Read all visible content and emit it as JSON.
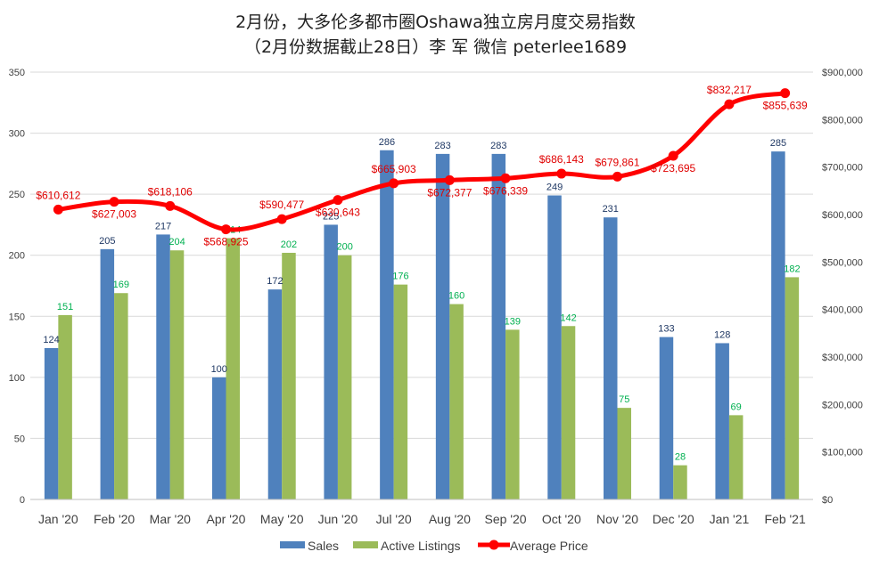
{
  "chart_data": {
    "type": "bar",
    "title": "2月份，大多伦多都市圈Oshawa独立房月度交易指数",
    "subtitle": "（2月份数据截止28日）李 军  微信  peterlee1689",
    "categories": [
      "Jan '20",
      "Feb '20",
      "Mar '20",
      "Apr '20",
      "May '20",
      "Jun '20",
      "Jul '20",
      "Aug '20",
      "Sep '20",
      "Oct '20",
      "Nov '20",
      "Dec '20",
      "Jan '21",
      "Feb '21"
    ],
    "series": [
      {
        "name": "Sales",
        "type": "bar",
        "axis": "left",
        "color": "#4f81bd",
        "label_color": "#1f3864",
        "values": [
          124,
          205,
          217,
          100,
          172,
          225,
          286,
          283,
          283,
          249,
          231,
          133,
          128,
          285
        ]
      },
      {
        "name": "Active Listings",
        "type": "bar",
        "axis": "left",
        "color": "#9bbb59",
        "label_color": "#00b050",
        "values": [
          151,
          169,
          204,
          214,
          202,
          200,
          176,
          160,
          139,
          142,
          75,
          28,
          69,
          182
        ]
      },
      {
        "name": "Average Price",
        "type": "line",
        "axis": "right",
        "color": "#ff0000",
        "label_color": "#e00000",
        "values": [
          610612,
          627003,
          618106,
          568925,
          590477,
          630643,
          665903,
          672377,
          676339,
          686143,
          679861,
          723695,
          832217,
          855639
        ],
        "labels": [
          "$610,612",
          "$627,003",
          "$618,106",
          "$568,925",
          "$590,477",
          "$630,643",
          "$665,903",
          "$672,377",
          "$676,339",
          "$686,143",
          "$679,861",
          "$723,695",
          "$832,217",
          "$855,639"
        ]
      }
    ],
    "left_axis": {
      "ylim": [
        0,
        350
      ],
      "ticks": [
        0,
        50,
        100,
        150,
        200,
        250,
        300,
        350
      ],
      "tick_labels": [
        "0",
        "50",
        "100",
        "150",
        "200",
        "250",
        "300",
        "350"
      ]
    },
    "right_axis": {
      "ylim": [
        0,
        900000
      ],
      "ticks": [
        0,
        100000,
        200000,
        300000,
        400000,
        500000,
        600000,
        700000,
        800000,
        900000
      ],
      "tick_labels": [
        "$0",
        "$100,000",
        "$200,000",
        "$300,000",
        "$400,000",
        "$500,000",
        "$600,000",
        "$700,000",
        "$800,000",
        "$900,000"
      ]
    },
    "grid": true,
    "legend_position": "bottom"
  }
}
